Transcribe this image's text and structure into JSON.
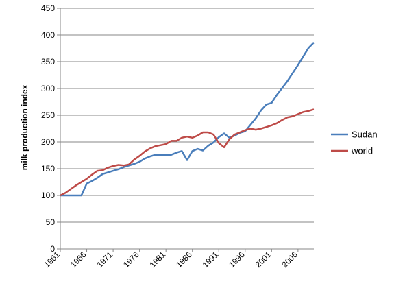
{
  "chart_data": {
    "type": "line",
    "title": "",
    "xlabel": "",
    "ylabel": "milk production index",
    "ylim": [
      0,
      450
    ],
    "yticks": [
      0,
      50,
      100,
      150,
      200,
      250,
      300,
      350,
      400,
      450
    ],
    "xlim": [
      1961,
      2009
    ],
    "xticks": [
      1961,
      1966,
      1971,
      1976,
      1981,
      1986,
      1991,
      1996,
      2001,
      2006
    ],
    "grid": "horizontal",
    "legend": "right",
    "x": [
      1961,
      1962,
      1963,
      1964,
      1965,
      1966,
      1967,
      1968,
      1969,
      1970,
      1971,
      1972,
      1973,
      1974,
      1975,
      1976,
      1977,
      1978,
      1979,
      1980,
      1981,
      1982,
      1983,
      1984,
      1985,
      1986,
      1987,
      1988,
      1989,
      1990,
      1991,
      1992,
      1993,
      1994,
      1995,
      1996,
      1997,
      1998,
      1999,
      2000,
      2001,
      2002,
      2003,
      2004,
      2005,
      2006,
      2007,
      2008,
      2009
    ],
    "series": [
      {
        "name": "Sudan",
        "color": "#4a7ebb",
        "values": [
          100,
          100,
          100,
          100,
          100,
          122,
          127,
          133,
          140,
          143,
          146,
          149,
          153,
          156,
          159,
          163,
          169,
          173,
          176,
          176,
          176,
          176,
          180,
          183,
          166,
          183,
          187,
          184,
          193,
          199,
          209,
          216,
          208,
          212,
          217,
          220,
          232,
          244,
          259,
          270,
          273,
          288,
          301,
          314,
          329,
          344,
          360,
          376,
          386
        ]
      },
      {
        "name": "world",
        "color": "#be4b48",
        "values": [
          100,
          105,
          112,
          119,
          125,
          131,
          139,
          146,
          147,
          152,
          155,
          157,
          156,
          158,
          167,
          174,
          182,
          188,
          192,
          194,
          196,
          202,
          202,
          208,
          210,
          208,
          212,
          218,
          218,
          214,
          198,
          190,
          205,
          214,
          218,
          222,
          225,
          223,
          225,
          228,
          231,
          235,
          241,
          246,
          248,
          252,
          256,
          258,
          261
        ]
      }
    ]
  }
}
